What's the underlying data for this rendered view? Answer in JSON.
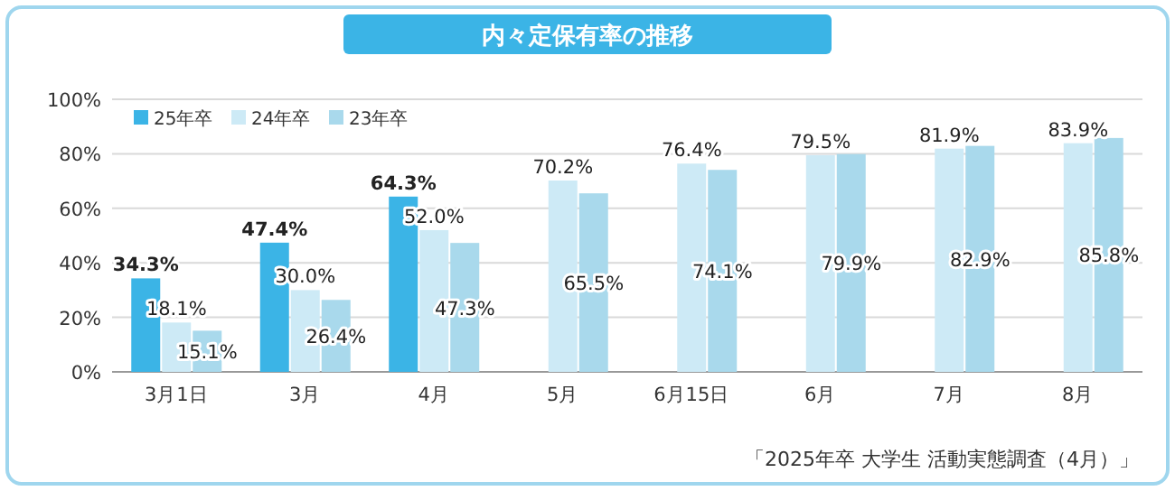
{
  "chart_data": {
    "type": "bar",
    "title": "内々定保有率の推移",
    "categories": [
      "3月1日",
      "3月",
      "4月",
      "5月",
      "6月15日",
      "6月",
      "7月",
      "8月"
    ],
    "series": [
      {
        "name": "25年卒",
        "color": "#3bb4e6",
        "values": [
          34.3,
          47.4,
          64.3,
          null,
          null,
          null,
          null,
          null
        ],
        "value_labels": [
          "34.3%",
          "47.4%",
          "64.3%",
          null,
          null,
          null,
          null,
          null
        ]
      },
      {
        "name": "24年卒",
        "color": "#cdeaf6",
        "values": [
          18.1,
          30.0,
          52.0,
          70.2,
          76.4,
          79.5,
          81.9,
          83.9
        ],
        "value_labels": [
          "18.1%",
          "30.0%",
          "52.0%",
          "70.2%",
          "76.4%",
          "79.5%",
          "81.9%",
          "83.9%"
        ]
      },
      {
        "name": "23年卒",
        "color": "#a9d9ec",
        "values": [
          15.1,
          26.4,
          47.3,
          65.5,
          74.1,
          79.9,
          82.9,
          85.8
        ],
        "value_labels": [
          "15.1%",
          "26.4%",
          "47.3%",
          "65.5%",
          "74.1%",
          "79.9%",
          "82.9%",
          "85.8%"
        ]
      }
    ],
    "ylim": [
      0,
      100
    ],
    "yticks": [
      {
        "value": 0,
        "label": "0%"
      },
      {
        "value": 20,
        "label": "20%"
      },
      {
        "value": 40,
        "label": "40%"
      },
      {
        "value": 60,
        "label": "60%"
      },
      {
        "value": 80,
        "label": "80%"
      },
      {
        "value": 100,
        "label": "100%"
      }
    ],
    "grid": "y",
    "legend": "top left",
    "annotations": [
      "「2025年卒 大学生 活動実態調査（4月）」"
    ]
  }
}
